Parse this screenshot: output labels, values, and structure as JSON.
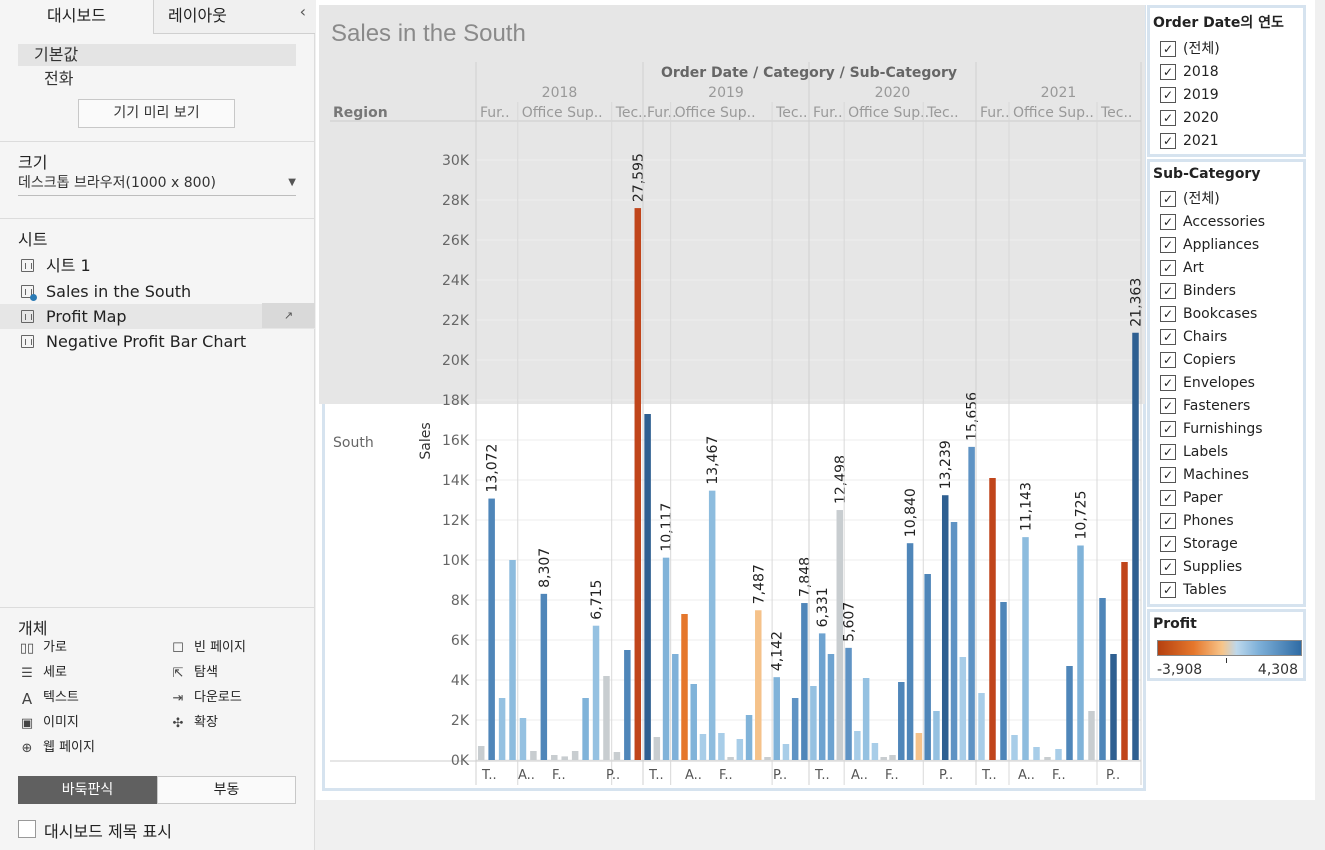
{
  "left_panel": {
    "tab_dashboard": "대시보드",
    "tab_layout": "레이아웃",
    "collapse": "‹",
    "device_default": "기본값",
    "device_phone": "전화",
    "preview_button": "기기 미리 보기",
    "size_title": "크기",
    "size_value": "데스크톱 브라우저(1000 x 800)",
    "sheets_title": "시트",
    "sheets": [
      {
        "label": "시트 1",
        "in_use": false
      },
      {
        "label": "Sales in the South",
        "in_use": true
      },
      {
        "label": "Profit Map",
        "in_use": false
      },
      {
        "label": "Negative Profit Bar Chart",
        "in_use": false
      }
    ],
    "objects_title": "개체",
    "objects": [
      {
        "label": "가로",
        "icon": "horizontal-icon"
      },
      {
        "label": "빈 페이지",
        "icon": "blank-icon"
      },
      {
        "label": "세로",
        "icon": "vertical-icon"
      },
      {
        "label": "탐색",
        "icon": "navigation-icon"
      },
      {
        "label": "텍스트",
        "icon": "text-icon"
      },
      {
        "label": "다운로드",
        "icon": "download-icon"
      },
      {
        "label": "이미지",
        "icon": "image-icon"
      },
      {
        "label": "확장",
        "icon": "extension-icon"
      },
      {
        "label": "웹 페이지",
        "icon": "web-page-icon"
      }
    ],
    "toggle_tiled": "바둑판식",
    "toggle_floating": "부동",
    "show_title": "대시보드 제목 표시"
  },
  "chart_data": {
    "type": "bar",
    "title": "Sales in the South",
    "column_header": "Order Date / Category / Sub-Category",
    "row_header": "Region",
    "region": "South",
    "ylabel": "Sales",
    "ylim": [
      0,
      31000
    ],
    "yticks": [
      "0K",
      "2K",
      "4K",
      "6K",
      "8K",
      "10K",
      "12K",
      "14K",
      "16K",
      "18K",
      "20K",
      "22K",
      "24K",
      "26K",
      "28K",
      "30K"
    ],
    "ytick_values": [
      0,
      2000,
      4000,
      6000,
      8000,
      10000,
      12000,
      14000,
      16000,
      18000,
      20000,
      22000,
      24000,
      26000,
      28000,
      30000
    ],
    "years": [
      "2018",
      "2019",
      "2020",
      "2021"
    ],
    "category_headers": [
      [
        "Fur..",
        "Office Sup..",
        "Tec.."
      ],
      [
        "Fur..",
        "Office Sup..",
        "Tec.."
      ],
      [
        "Fur..",
        "Office Sup..",
        "Tec.."
      ],
      [
        "Fur..",
        "Office Sup..",
        "Tec.."
      ]
    ],
    "bottom_labels": [
      [
        "T..",
        "A..",
        "F..",
        "P.."
      ],
      [
        "T..",
        "A..",
        "F..",
        "P.."
      ],
      [
        "T..",
        "A..",
        "F..",
        "P.."
      ],
      [
        "T..",
        "A..",
        "F..",
        "P.."
      ]
    ],
    "groups": [
      {
        "year": "2018",
        "category": "Furniture",
        "values": [
          700,
          13072,
          3100,
          10000
        ],
        "labels": [
          "",
          "13,072",
          "",
          ""
        ],
        "colors": [
          "#c8cdd0",
          "#4f86b9",
          "#95c1e1",
          "#8dbcde"
        ]
      },
      {
        "year": "2018",
        "category": "Office Supplies",
        "values": [
          2100,
          450,
          8307,
          250,
          180,
          450,
          3100,
          6715,
          4200
        ],
        "labels": [
          "",
          "",
          "8,307",
          "",
          "",
          "",
          "",
          "6,715",
          ""
        ],
        "colors": [
          "#95c1e1",
          "#c8cdd0",
          "#4f86b9",
          "#c8cdd0",
          "#c8cdd0",
          "#c8cdd0",
          "#80b3d9",
          "#95c1e1",
          "#c8cdd0"
        ]
      },
      {
        "year": "2018",
        "category": "Technology",
        "values": [
          400,
          5500,
          27595
        ],
        "labels": [
          "",
          "",
          "27,595"
        ],
        "colors": [
          "#c8cdd0",
          "#4f86b9",
          "#c0451b"
        ]
      },
      {
        "year": "2019",
        "category": "Furniture",
        "values": [
          17300,
          1150,
          10117
        ],
        "labels": [
          "",
          "",
          "10,117"
        ],
        "colors": [
          "#2e5f91",
          "#c8cdd0",
          "#80b3d9"
        ]
      },
      {
        "year": "2019",
        "category": "Office Supplies",
        "values": [
          5300,
          7300,
          3800,
          1300,
          13467,
          1350,
          150,
          1050,
          2250,
          7487,
          150
        ],
        "labels": [
          "",
          "",
          "",
          "",
          "13,467",
          "",
          "",
          "",
          "",
          "7,487",
          ""
        ],
        "colors": [
          "#7fb1d9",
          "#e5772c",
          "#80b3d9",
          "#a8cde8",
          "#8dbcde",
          "#a8cde8",
          "#c8cdd0",
          "#a8cde8",
          "#80b3d9",
          "#f5c28a",
          "#c8cdd0"
        ]
      },
      {
        "year": "2019",
        "category": "Technology",
        "values": [
          4142,
          800,
          3100,
          7848
        ],
        "labels": [
          "4,142",
          "",
          "",
          "7,848"
        ],
        "colors": [
          "#80b3d9",
          "#a8cde8",
          "#5f93c4",
          "#4f86b9"
        ]
      },
      {
        "year": "2020",
        "category": "Furniture",
        "values": [
          3700,
          6331,
          5300,
          12498
        ],
        "labels": [
          "",
          "6,331",
          "",
          "12,498"
        ],
        "colors": [
          "#95c1e1",
          "#6ea3d0",
          "#6ea3d0",
          "#c8cdd0"
        ]
      },
      {
        "year": "2020",
        "category": "Office Supplies",
        "values": [
          5607,
          1450,
          4100,
          850,
          150,
          250,
          3900,
          10840,
          1350
        ],
        "labels": [
          "5,607",
          "",
          "",
          "",
          "",
          "",
          "",
          "10,840",
          ""
        ],
        "colors": [
          "#5f93c4",
          "#a8cde8",
          "#95c1e1",
          "#a8cde8",
          "#c8cdd0",
          "#c8cdd0",
          "#4f86b9",
          "#4f86b9",
          "#f5c28a"
        ]
      },
      {
        "year": "2020",
        "category": "Technology",
        "values": [
          9300,
          2450,
          13239,
          11900,
          5150,
          15656
        ],
        "labels": [
          "",
          "",
          "13,239",
          "",
          "",
          "15,656"
        ],
        "colors": [
          "#4f86b9",
          "#95c1e1",
          "#2e5f91",
          "#5f93c4",
          "#a8cde8",
          "#5f93c4"
        ]
      },
      {
        "year": "2021",
        "category": "Furniture",
        "values": [
          3350,
          14100,
          7900
        ],
        "labels": [
          "",
          "",
          ""
        ],
        "colors": [
          "#a8cde8",
          "#c0451b",
          "#4f86b9"
        ]
      },
      {
        "year": "2021",
        "category": "Office Supplies",
        "values": [
          1250,
          11143,
          650,
          150,
          550,
          4700,
          10725,
          2450
        ],
        "labels": [
          "",
          "11,143",
          "",
          "",
          "",
          "",
          "10,725",
          ""
        ],
        "colors": [
          "#a8cde8",
          "#8dbcde",
          "#a8cde8",
          "#c8cdd0",
          "#a8cde8",
          "#4f86b9",
          "#80b3d9",
          "#c8cdd0"
        ]
      },
      {
        "year": "2021",
        "category": "Technology",
        "values": [
          8100,
          5300,
          9900,
          21363
        ],
        "labels": [
          "",
          "",
          "",
          "21,363"
        ],
        "colors": [
          "#4f86b9",
          "#2e5f91",
          "#c0451b",
          "#2e5f91"
        ]
      }
    ]
  },
  "filters": {
    "order_date": {
      "title": "Order Date의 연도",
      "items": [
        "(전체)",
        "2018",
        "2019",
        "2020",
        "2021"
      ]
    },
    "sub_category": {
      "title": "Sub-Category",
      "items": [
        "(전체)",
        "Accessories",
        "Appliances",
        "Art",
        "Binders",
        "Bookcases",
        "Chairs",
        "Copiers",
        "Envelopes",
        "Fasteners",
        "Furnishings",
        "Labels",
        "Machines",
        "Paper",
        "Phones",
        "Storage",
        "Supplies",
        "Tables"
      ]
    },
    "profit": {
      "title": "Profit",
      "min": "-3,908",
      "max": "4,308"
    },
    "check": "✓"
  }
}
